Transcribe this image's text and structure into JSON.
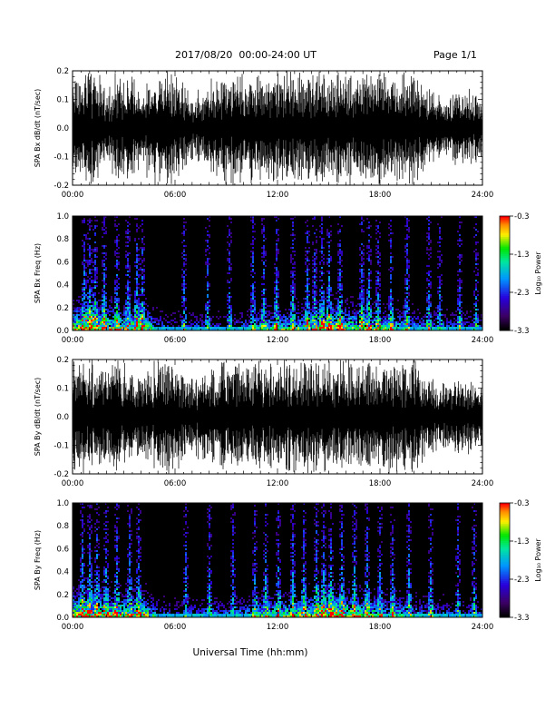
{
  "header": {
    "title": "2017/08/20  00:00-24:00 UT",
    "page": "Page 1/1"
  },
  "xlabel": "Universal Time (hh:mm)",
  "x_ticks": [
    "00:00",
    "06:00",
    "12:00",
    "18:00",
    "24:00"
  ],
  "colorbar": {
    "label": "Log₁₀ Power",
    "ticks": [
      "-0.3",
      "-1.3",
      "-2.3",
      "-3.3"
    ],
    "range": [
      -3.3,
      -0.3
    ]
  },
  "chart_data": [
    {
      "type": "line",
      "name": "bx-waveform",
      "ylabel": "SPA Bx dB/dt (nT/sec)",
      "y_ticks": [
        "0.2",
        "0.1",
        "0.0",
        "-0.1",
        "-0.2"
      ],
      "xlim": [
        0,
        24
      ],
      "ylim": [
        -0.2,
        0.2
      ],
      "x_hours": [
        0,
        1,
        2,
        3,
        4,
        5,
        6,
        7,
        8,
        9,
        10,
        11,
        12,
        13,
        14,
        15,
        16,
        17,
        18,
        19,
        20,
        21,
        22,
        23,
        24
      ],
      "amplitude": [
        0.2,
        0.2,
        0.14,
        0.2,
        0.12,
        0.2,
        0.2,
        0.1,
        0.16,
        0.2,
        0.2,
        0.2,
        0.2,
        0.2,
        0.2,
        0.2,
        0.2,
        0.2,
        0.2,
        0.2,
        0.2,
        0.12,
        0.1,
        0.14,
        0.1
      ]
    },
    {
      "type": "heatmap",
      "name": "bx-spectrogram",
      "ylabel": "SPA Bx Freq (Hz)",
      "y_ticks": [
        "1.0",
        "0.8",
        "0.6",
        "0.4",
        "0.2",
        "0.0"
      ],
      "xlim": [
        0,
        24
      ],
      "ylim": [
        0,
        1.0
      ],
      "activity": [
        0.8,
        0.9,
        0.75,
        0.7,
        0.8,
        0.35,
        0.3,
        0.35,
        0.3,
        0.3,
        0.4,
        0.5,
        0.55,
        0.6,
        0.65,
        0.9,
        0.75,
        0.65,
        0.6,
        0.55,
        0.45,
        0.4,
        0.35,
        0.35,
        0.3
      ],
      "bursts_hours": [
        0.6,
        1.0,
        1.3,
        1.8,
        2.6,
        3.2,
        3.7,
        4.0,
        6.5,
        7.9,
        9.1,
        10.5,
        11.2,
        11.9,
        12.8,
        13.7,
        14.1,
        14.6,
        15.0,
        15.6,
        16.9,
        17.3,
        17.8,
        18.6,
        19.5,
        20.8,
        21.5,
        22.6,
        23.6
      ]
    },
    {
      "type": "line",
      "name": "by-waveform",
      "ylabel": "SPA By dB/dt (nT/sec)",
      "y_ticks": [
        "0.2",
        "0.1",
        "0.0",
        "-0.1",
        "-0.2"
      ],
      "xlim": [
        0,
        24
      ],
      "ylim": [
        -0.2,
        0.2
      ],
      "x_hours": [
        0,
        1,
        2,
        3,
        4,
        5,
        6,
        7,
        8,
        9,
        10,
        11,
        12,
        13,
        14,
        15,
        16,
        17,
        18,
        19,
        20,
        21,
        22,
        23,
        24
      ],
      "amplitude": [
        0.2,
        0.2,
        0.15,
        0.2,
        0.13,
        0.2,
        0.2,
        0.12,
        0.18,
        0.2,
        0.2,
        0.2,
        0.2,
        0.2,
        0.2,
        0.2,
        0.2,
        0.2,
        0.2,
        0.2,
        0.2,
        0.12,
        0.1,
        0.13,
        0.1
      ]
    },
    {
      "type": "heatmap",
      "name": "by-spectrogram",
      "ylabel": "SPA By Freq (Hz)",
      "y_ticks": [
        "1.0",
        "0.8",
        "0.6",
        "0.4",
        "0.2",
        "0.0"
      ],
      "xlim": [
        0,
        24
      ],
      "ylim": [
        0,
        1.0
      ],
      "activity": [
        0.85,
        0.9,
        0.8,
        0.75,
        0.8,
        0.35,
        0.3,
        0.35,
        0.4,
        0.35,
        0.45,
        0.55,
        0.6,
        0.65,
        0.7,
        0.95,
        0.8,
        0.7,
        0.6,
        0.55,
        0.45,
        0.4,
        0.35,
        0.35,
        0.3
      ],
      "bursts_hours": [
        0.5,
        1.0,
        1.4,
        1.9,
        2.5,
        3.3,
        3.8,
        6.6,
        8.0,
        9.3,
        10.6,
        11.3,
        12.0,
        12.9,
        13.5,
        14.2,
        14.7,
        15.1,
        15.7,
        16.5,
        17.2,
        17.9,
        18.7,
        19.6,
        20.9,
        22.5,
        23.5
      ]
    }
  ]
}
